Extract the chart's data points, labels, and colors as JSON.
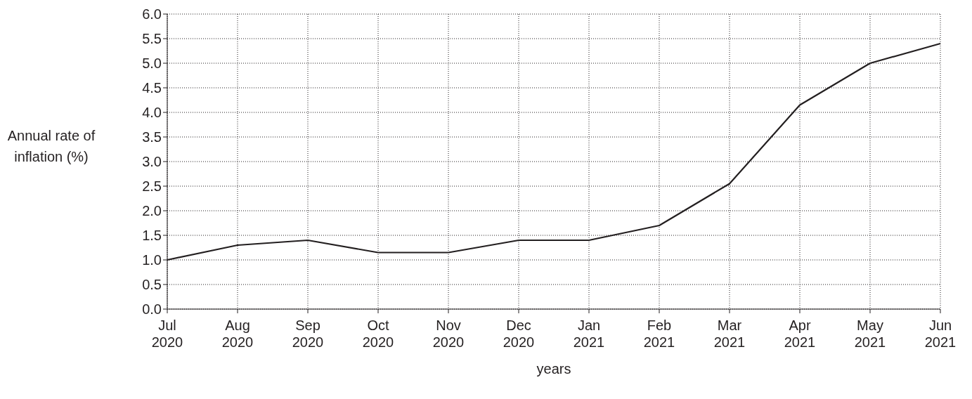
{
  "chart_data": {
    "type": "line",
    "xlabel": "years",
    "ylabel": "Annual rate of inflation (%)",
    "categories": [
      "Jul 2020",
      "Aug 2020",
      "Sep 2020",
      "Oct 2020",
      "Nov 2020",
      "Dec 2020",
      "Jan 2021",
      "Feb 2021",
      "Mar 2021",
      "Apr 2021",
      "May 2021",
      "Jun 2021"
    ],
    "series": [
      {
        "color": "#231f20",
        "values": [
          1.0,
          1.3,
          1.4,
          1.15,
          1.15,
          1.4,
          1.4,
          1.7,
          2.55,
          4.15,
          5.0,
          5.4
        ]
      }
    ],
    "ylim": [
      0,
      6
    ],
    "yticks": [
      {
        "value": 0,
        "label": "0.0"
      },
      {
        "value": 0.5,
        "label": "0.5"
      },
      {
        "value": 1,
        "label": "1.0"
      },
      {
        "value": 1.5,
        "label": "1.5"
      },
      {
        "value": 2,
        "label": "2.0"
      },
      {
        "value": 2.5,
        "label": "2.5"
      },
      {
        "value": 3,
        "label": "3.0"
      },
      {
        "value": 3.5,
        "label": "3.5"
      },
      {
        "value": 4,
        "label": "4.0"
      },
      {
        "value": 4.5,
        "label": "4.5"
      },
      {
        "value": 5,
        "label": "5.0"
      },
      {
        "value": 5.5,
        "label": "5.5"
      },
      {
        "value": 6,
        "label": "6.0"
      }
    ],
    "grid": true,
    "marker": "none",
    "line_style": "solid"
  }
}
